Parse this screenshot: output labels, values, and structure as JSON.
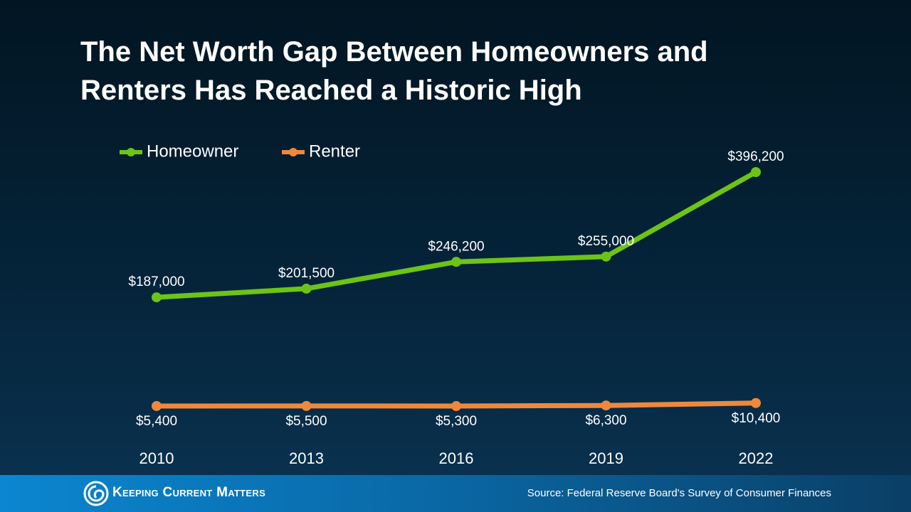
{
  "chart_data": {
    "type": "line",
    "title": "The Net Worth Gap Between Homeowners and Renters Has Reached a Historic High",
    "categories": [
      "2010",
      "2013",
      "2016",
      "2019",
      "2022"
    ],
    "series": [
      {
        "name": "Homeowner",
        "color": "#6cc417",
        "values": [
          187000,
          201500,
          246200,
          255000,
          396200
        ],
        "value_labels": [
          "$187,000",
          "$201,500",
          "$246,200",
          "$255,000",
          "$396,200"
        ]
      },
      {
        "name": "Renter",
        "color": "#f0883a",
        "values": [
          5400,
          5500,
          5300,
          6300,
          10400
        ],
        "value_labels": [
          "$5,400",
          "$5,500",
          "$5,300",
          "$6,300",
          "$10,400"
        ]
      }
    ],
    "legend": "top-left",
    "grid": false
  },
  "footer": {
    "brand": "Keeping Current Matters",
    "source": "Source: Federal Reserve Board's Survey of Consumer Finances"
  }
}
